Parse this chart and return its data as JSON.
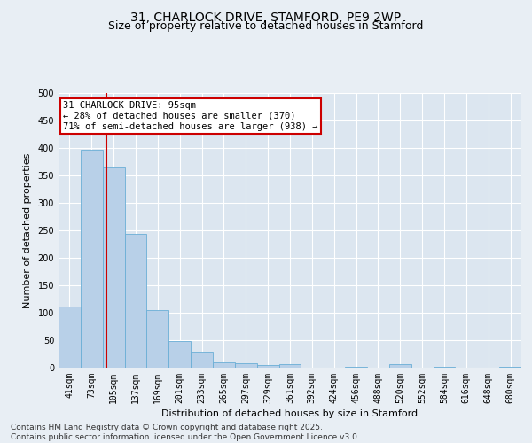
{
  "title_line1": "31, CHARLOCK DRIVE, STAMFORD, PE9 2WP",
  "title_line2": "Size of property relative to detached houses in Stamford",
  "xlabel": "Distribution of detached houses by size in Stamford",
  "ylabel": "Number of detached properties",
  "categories": [
    "41sqm",
    "73sqm",
    "105sqm",
    "137sqm",
    "169sqm",
    "201sqm",
    "233sqm",
    "265sqm",
    "297sqm",
    "329sqm",
    "361sqm",
    "392sqm",
    "424sqm",
    "456sqm",
    "488sqm",
    "520sqm",
    "552sqm",
    "584sqm",
    "616sqm",
    "648sqm",
    "680sqm"
  ],
  "values": [
    112,
    397,
    365,
    243,
    105,
    49,
    29,
    10,
    8,
    5,
    7,
    0,
    0,
    2,
    0,
    6,
    0,
    2,
    0,
    0,
    2
  ],
  "bar_color": "#b8d0e8",
  "bar_edge_color": "#6aaed6",
  "annotation_line1": "31 CHARLOCK DRIVE: 95sqm",
  "annotation_line2": "← 28% of detached houses are smaller (370)",
  "annotation_line3": "71% of semi-detached houses are larger (938) →",
  "annotation_box_color": "#ffffff",
  "annotation_box_edge_color": "#cc0000",
  "ylim": [
    0,
    500
  ],
  "yticks": [
    0,
    50,
    100,
    150,
    200,
    250,
    300,
    350,
    400,
    450,
    500
  ],
  "footer_line1": "Contains HM Land Registry data © Crown copyright and database right 2025.",
  "footer_line2": "Contains public sector information licensed under the Open Government Licence v3.0.",
  "fig_background_color": "#e8eef4",
  "plot_background_color": "#dce6f0",
  "grid_color": "#ffffff",
  "title_fontsize": 10,
  "subtitle_fontsize": 9,
  "axis_label_fontsize": 8,
  "tick_fontsize": 7,
  "annotation_fontsize": 7.5,
  "footer_fontsize": 6.5
}
